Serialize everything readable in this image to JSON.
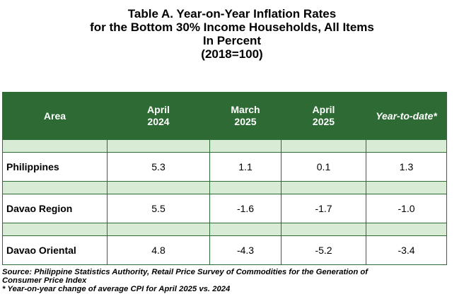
{
  "title": {
    "line1": "Table A. Year-on-Year Inflation Rates",
    "line2": "for the Bottom 30% Income Households, All Items",
    "line3": "In Percent",
    "line4": "(2018=100)"
  },
  "table": {
    "headers": [
      {
        "line1": "Area",
        "line2": ""
      },
      {
        "line1": "April",
        "line2": "2024"
      },
      {
        "line1": "March",
        "line2": "2025"
      },
      {
        "line1": "April",
        "line2": "2025"
      },
      {
        "line1": "Year-to-date*",
        "line2": ""
      }
    ],
    "rows": [
      {
        "area": "Philippines",
        "values": [
          "5.3",
          "1.1",
          "0.1",
          "1.3"
        ]
      },
      {
        "area": "Davao Region",
        "values": [
          "5.5",
          "-1.6",
          "-1.7",
          "-1.0"
        ]
      },
      {
        "area": "Davao Oriental",
        "values": [
          "4.8",
          "-4.3",
          "-5.2",
          "-3.4"
        ]
      }
    ]
  },
  "notes": {
    "source_line1": "Source: Philippine Statistics Authority, Retail Price Survey of Commodities for the Generation of",
    "source_line2": "Consumer Price Index",
    "footnote": "* Year-on-year change of average CPI for April 2025 vs. 2024"
  },
  "colors": {
    "header_bg": "#2e6b34",
    "spacer_bg": "#d7ebd5",
    "border": "#2e6b34"
  }
}
